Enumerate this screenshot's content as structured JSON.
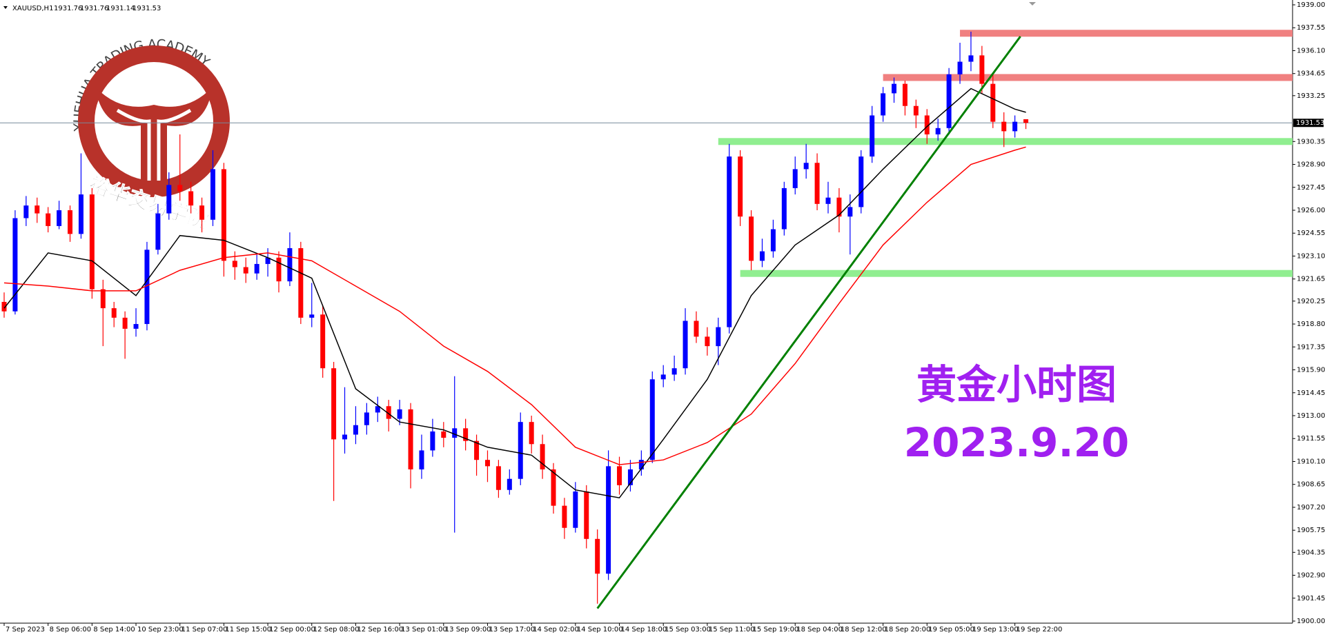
{
  "symbol": "XAUUSD,H1",
  "watermark": {
    "arc_text": "YUEHUA TRADING ACADEMY",
    "name": "裕华交易学院"
  },
  "chart_data": {
    "type": "candlestick",
    "title": "黄金小时图",
    "subtitle": "2023.9.20",
    "up_color": "#0000ff",
    "down_color": "#ff0000",
    "categories": [
      "7 Sep 2023",
      null,
      null,
      null,
      "8 Sep 06:00",
      null,
      null,
      null,
      "8 Sep 14:00",
      null,
      null,
      null,
      "10 Sep 23:00",
      null,
      null,
      null,
      "11 Sep 07:00",
      null,
      null,
      null,
      "11 Sep 15:00",
      null,
      null,
      null,
      "12 Sep 00:00",
      null,
      null,
      null,
      "12 Sep 08:00",
      null,
      null,
      null,
      "12 Sep 16:00",
      null,
      null,
      null,
      "13 Sep 01:00",
      null,
      null,
      null,
      "13 Sep 09:00",
      null,
      null,
      null,
      "13 Sep 17:00",
      null,
      null,
      null,
      "14 Sep 02:00",
      null,
      null,
      null,
      "14 Sep 10:00",
      null,
      null,
      null,
      "14 Sep 18:00",
      null,
      null,
      null,
      "15 Sep 03:00",
      null,
      null,
      null,
      "15 Sep 11:00",
      null,
      null,
      null,
      "15 Sep 19:00",
      null,
      null,
      null,
      "18 Sep 04:00",
      null,
      null,
      null,
      "18 Sep 12:00",
      null,
      null,
      null,
      "18 Sep 20:00",
      null,
      null,
      null,
      "19 Sep 05:00",
      null,
      null,
      null,
      "19 Sep 13:00",
      null,
      null,
      null,
      "19 Sep 22:00",
      null
    ],
    "open": [
      1920.2,
      1919.6,
      1925.5,
      1926.3,
      1925.8,
      1925.0,
      1926.0,
      1924.5,
      1927.0,
      1921.0,
      1919.8,
      1919.2,
      1918.5,
      1918.8,
      1923.5,
      1925.8,
      1927.6,
      1927.2,
      1926.3,
      1925.4,
      1928.6,
      1922.8,
      1922.4,
      1922.0,
      1922.6,
      1923.0,
      1921.5,
      1923.6,
      1919.2,
      1919.4,
      1916.0,
      1911.5,
      1911.8,
      1912.4,
      1913.2,
      1913.6,
      1912.8,
      1913.4,
      1909.6,
      1910.8,
      1912.0,
      1911.6,
      1912.2,
      1911.4,
      1910.2,
      1909.8,
      1908.3,
      1909.0,
      1912.6,
      1911.2,
      1909.6,
      1907.3,
      1905.9,
      1908.2,
      1905.2,
      1903.0,
      1909.8,
      1908.6,
      1909.6,
      1910.2,
      1915.3,
      1915.6,
      1916.0,
      1919.0,
      1918.0,
      1917.4,
      1918.6,
      1929.4,
      1925.6,
      1922.8,
      1923.4,
      1924.8,
      1927.4,
      1928.6,
      1929.0,
      1926.4,
      1926.8,
      1925.6,
      1926.2,
      1929.4,
      1932.0,
      1933.4,
      1934.0,
      1932.6,
      1932.0,
      1930.8,
      1931.2,
      1934.6,
      1935.4,
      1935.8,
      1934.0,
      1931.6,
      1931.0,
      1931.76
    ],
    "high": [
      1920.8,
      1926.0,
      1926.9,
      1926.8,
      1926.2,
      1926.6,
      1926.3,
      1929.6,
      1927.4,
      1921.6,
      1920.2,
      1919.6,
      1919.8,
      1924.0,
      1926.4,
      1928.4,
      1930.8,
      1927.8,
      1926.8,
      1929.8,
      1929.0,
      1923.4,
      1923.0,
      1923.2,
      1923.6,
      1923.4,
      1924.6,
      1924.0,
      1921.4,
      1920.0,
      1916.4,
      1914.8,
      1913.6,
      1913.8,
      1914.2,
      1914.0,
      1914.0,
      1913.8,
      1911.8,
      1912.8,
      1912.6,
      1915.5,
      1912.8,
      1911.8,
      1910.8,
      1910.2,
      1909.6,
      1913.2,
      1913.0,
      1911.8,
      1910.0,
      1907.8,
      1908.8,
      1908.6,
      1905.8,
      1910.8,
      1910.4,
      1910.2,
      1910.8,
      1915.8,
      1916.2,
      1916.8,
      1919.8,
      1919.6,
      1918.6,
      1919.2,
      1930.2,
      1929.8,
      1926.0,
      1924.2,
      1925.4,
      1927.8,
      1929.4,
      1930.2,
      1929.6,
      1927.8,
      1927.4,
      1927.0,
      1929.8,
      1932.6,
      1933.8,
      1934.4,
      1934.2,
      1933.0,
      1932.4,
      1931.8,
      1935.0,
      1936.6,
      1937.3,
      1936.4,
      1934.6,
      1932.2,
      1932.0,
      1931.76
    ],
    "low": [
      1919.2,
      1919.4,
      1925.0,
      1925.2,
      1924.6,
      1924.8,
      1924.0,
      1924.2,
      1920.4,
      1917.4,
      1918.6,
      1916.6,
      1918.0,
      1918.4,
      1923.2,
      1925.4,
      1926.6,
      1925.8,
      1924.6,
      1925.0,
      1921.8,
      1921.6,
      1921.4,
      1921.6,
      1921.8,
      1920.8,
      1921.2,
      1918.8,
      1918.6,
      1915.4,
      1907.6,
      1910.6,
      1911.2,
      1911.8,
      1912.6,
      1912.0,
      1912.4,
      1908.4,
      1909.0,
      1910.4,
      1911.0,
      1905.6,
      1910.8,
      1909.2,
      1908.8,
      1907.8,
      1908.0,
      1908.6,
      1910.6,
      1909.0,
      1906.8,
      1905.2,
      1905.6,
      1904.6,
      1901.1,
      1902.6,
      1908.0,
      1908.2,
      1909.2,
      1910.0,
      1914.8,
      1915.2,
      1915.6,
      1917.6,
      1916.8,
      1916.2,
      1918.2,
      1925.0,
      1922.2,
      1922.4,
      1923.0,
      1924.4,
      1927.0,
      1928.0,
      1926.0,
      1925.8,
      1924.6,
      1923.2,
      1925.8,
      1929.0,
      1931.6,
      1932.8,
      1932.0,
      1931.2,
      1930.2,
      1930.4,
      1930.8,
      1934.0,
      1934.8,
      1933.4,
      1931.2,
      1930.0,
      1930.6,
      1931.14
    ],
    "close": [
      1919.6,
      1925.5,
      1926.3,
      1925.8,
      1925.0,
      1926.0,
      1924.5,
      1927.0,
      1921.0,
      1919.8,
      1919.2,
      1918.5,
      1918.8,
      1923.5,
      1925.8,
      1927.6,
      1927.2,
      1926.3,
      1925.4,
      1928.6,
      1922.8,
      1922.4,
      1922.0,
      1922.6,
      1923.0,
      1921.5,
      1923.6,
      1919.2,
      1919.4,
      1916.0,
      1911.5,
      1911.8,
      1912.4,
      1913.2,
      1913.6,
      1912.8,
      1913.4,
      1909.6,
      1910.8,
      1912.0,
      1911.6,
      1912.2,
      1911.4,
      1910.2,
      1909.8,
      1908.3,
      1909.0,
      1912.6,
      1911.2,
      1909.6,
      1907.3,
      1905.9,
      1908.2,
      1905.2,
      1903.0,
      1909.8,
      1908.6,
      1909.6,
      1910.2,
      1915.3,
      1915.6,
      1916.0,
      1919.0,
      1918.0,
      1917.4,
      1918.6,
      1929.4,
      1925.6,
      1922.8,
      1923.4,
      1924.8,
      1927.4,
      1928.6,
      1929.0,
      1926.4,
      1926.8,
      1925.6,
      1926.2,
      1929.4,
      1932.0,
      1933.4,
      1934.0,
      1932.6,
      1932.0,
      1930.8,
      1931.2,
      1934.6,
      1935.4,
      1935.8,
      1934.0,
      1931.6,
      1931.0,
      1931.6,
      1931.53
    ],
    "lines": [
      {
        "color": "#000000",
        "x": [
          0,
          4,
          8,
          12,
          16,
          20,
          24,
          28,
          32,
          36,
          40,
          44,
          48,
          52,
          56,
          60,
          64,
          68,
          72,
          76,
          80,
          84,
          88,
          92,
          93
        ],
        "values": [
          1919.8,
          1923.3,
          1922.8,
          1920.6,
          1924.4,
          1924.1,
          1923.0,
          1921.7,
          1914.7,
          1912.6,
          1912.1,
          1911.0,
          1910.5,
          1908.3,
          1907.8,
          1911.5,
          1915.3,
          1920.6,
          1923.8,
          1925.7,
          1928.6,
          1931.3,
          1933.7,
          1932.4,
          1932.2
        ]
      },
      {
        "color": "#ff0000",
        "x": [
          0,
          4,
          8,
          12,
          16,
          20,
          24,
          28,
          32,
          36,
          40,
          44,
          48,
          52,
          56,
          60,
          64,
          68,
          72,
          76,
          80,
          84,
          88,
          92,
          93
        ],
        "values": [
          1921.4,
          1921.2,
          1920.9,
          1920.9,
          1922.2,
          1923.0,
          1923.3,
          1922.8,
          1921.2,
          1919.6,
          1917.4,
          1915.8,
          1913.7,
          1911.0,
          1909.9,
          1910.2,
          1911.3,
          1913.1,
          1916.3,
          1920.1,
          1923.8,
          1926.5,
          1928.9,
          1929.8,
          1930.0
        ]
      }
    ],
    "levels": [
      {
        "value": 1937.2,
        "color": "#f08080",
        "start": 87
      },
      {
        "value": 1934.4,
        "color": "#f08080",
        "start": 80
      },
      {
        "value": 1930.35,
        "color": "#90ee90",
        "start": 65
      },
      {
        "value": 1922.0,
        "color": "#90ee90",
        "start": 67
      }
    ],
    "trendlines": [
      {
        "color": "#008000",
        "x": [
          54,
          92.5
        ],
        "values": [
          1900.8,
          1937.0
        ]
      }
    ],
    "ylim": [
      1900,
      1939
    ],
    "yticks": [
      {
        "value": 1900,
        "label": "1900.00"
      },
      1901.45,
      {
        "value": 1902.9,
        "label": "1902.90"
      },
      1904.35,
      1905.75,
      {
        "value": 1907.2,
        "label": "1907.20"
      },
      1908.65,
      {
        "value": 1910.1,
        "label": "1910.10"
      },
      1911.55,
      {
        "value": 1913,
        "label": "1913.00"
      },
      1914.45,
      {
        "value": 1915.9,
        "label": "1915.90"
      },
      1917.35,
      {
        "value": 1918.8,
        "label": "1918.80"
      },
      1920.25,
      1921.65,
      {
        "value": 1923.1,
        "label": "1923.10"
      },
      1924.55,
      {
        "value": 1926,
        "label": "1926.00"
      },
      1927.45,
      {
        "value": 1928.9,
        "label": "1928.90"
      },
      1930.35,
      1933.25,
      1934.65,
      {
        "value": 1936.1,
        "label": "1936.10"
      },
      1937.55,
      {
        "value": 1939,
        "label": "1939.00"
      }
    ]
  }
}
